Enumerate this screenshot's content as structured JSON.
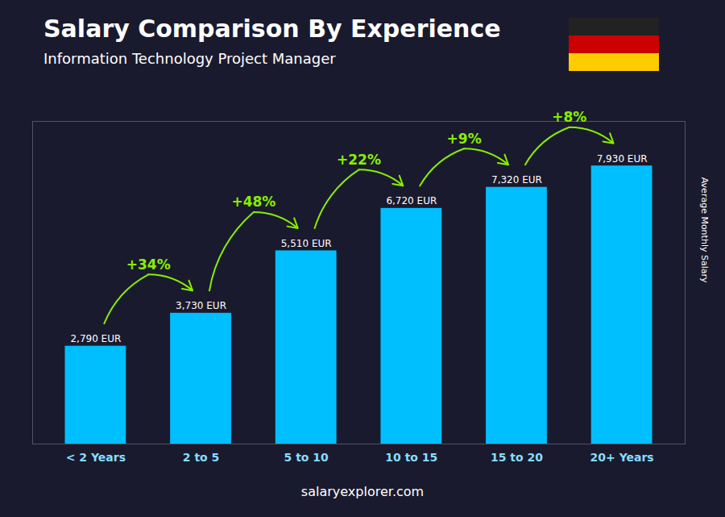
{
  "chart_data": {
    "type": "bar",
    "title": "Salary Comparison By Experience",
    "subtitle": "Information Technology Project Manager",
    "categories": [
      "< 2 Years",
      "2 to 5",
      "5 to 10",
      "10 to 15",
      "15 to 20",
      "20+ Years"
    ],
    "values": [
      2790,
      3730,
      5510,
      6720,
      7320,
      7930
    ],
    "value_labels": [
      "2,790 EUR",
      "3,730 EUR",
      "5,510 EUR",
      "6,720 EUR",
      "7,320 EUR",
      "7,930 EUR"
    ],
    "data_labels": true,
    "color": "#00bfff",
    "ylabel": "Average Monthly Salary",
    "ylim": [
      0,
      9200
    ],
    "yticks": [],
    "tick_labels": "x",
    "grid": false,
    "annotations": [
      {
        "from": "< 2 Years",
        "to": "2 to 5",
        "text": "+34%"
      },
      {
        "from": "2 to 5",
        "to": "5 to 10",
        "text": "+48%"
      },
      {
        "from": "5 to 10",
        "to": "10 to 15",
        "text": "+22%"
      },
      {
        "from": "10 to 15",
        "to": "15 to 20",
        "text": "+9%"
      },
      {
        "from": "15 to 20",
        "to": "20+ Years",
        "text": "+8%"
      }
    ],
    "source": "salaryexplorer.com"
  }
}
